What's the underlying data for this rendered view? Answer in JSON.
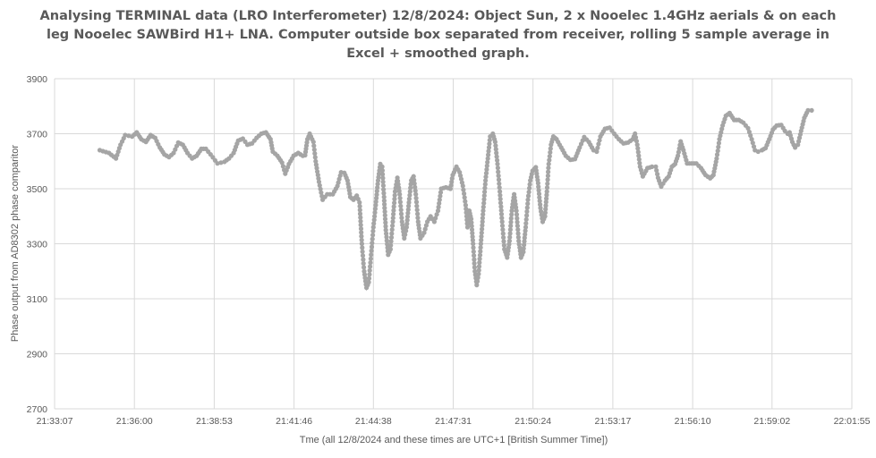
{
  "chart_data": {
    "type": "scatter",
    "title": "Analysing TERMINAL data (LRO Interferometer) 12/8/2024: Object Sun, 2 x Nooelec 1.4GHz aerials & on each leg Nooelec SAWBird H1+ LNA. Computer outside box separated from receiver, rolling 5 sample average in Excel + smoothed graph.",
    "xlabel": "Tme (all 12/8/2024 and these times are UTC+1 [British Summer Time])",
    "ylabel": "Phase output from AD8302 phase comparitor",
    "xlim": [
      "21:33:07",
      "22:01:55"
    ],
    "ylim": [
      2700,
      3900
    ],
    "x_ticks": [
      "21:33:07",
      "21:36:00",
      "21:38:53",
      "21:41:46",
      "21:44:38",
      "21:47:31",
      "21:50:24",
      "21:53:17",
      "21:56:10",
      "21:59:02",
      "22:01:55"
    ],
    "y_ticks": [
      2700,
      2900,
      3100,
      3300,
      3500,
      3700,
      3900
    ],
    "grid": true,
    "legend": "none",
    "series": [
      {
        "color": "#a5a5a5",
        "points": [
          [
            "21:34:45",
            3640
          ],
          [
            "21:35:05",
            3630
          ],
          [
            "21:35:20",
            3610
          ],
          [
            "21:35:30",
            3660
          ],
          [
            "21:35:40",
            3695
          ],
          [
            "21:35:55",
            3690
          ],
          [
            "21:36:05",
            3705
          ],
          [
            "21:36:15",
            3680
          ],
          [
            "21:36:25",
            3670
          ],
          [
            "21:36:35",
            3695
          ],
          [
            "21:36:45",
            3685
          ],
          [
            "21:36:55",
            3650
          ],
          [
            "21:37:05",
            3625
          ],
          [
            "21:37:15",
            3615
          ],
          [
            "21:37:25",
            3630
          ],
          [
            "21:37:35",
            3668
          ],
          [
            "21:37:45",
            3660
          ],
          [
            "21:37:55",
            3630
          ],
          [
            "21:38:05",
            3610
          ],
          [
            "21:38:15",
            3620
          ],
          [
            "21:38:25",
            3645
          ],
          [
            "21:38:35",
            3645
          ],
          [
            "21:38:45",
            3625
          ],
          [
            "21:39:00",
            3592
          ],
          [
            "21:39:15",
            3598
          ],
          [
            "21:39:25",
            3610
          ],
          [
            "21:39:35",
            3630
          ],
          [
            "21:39:45",
            3675
          ],
          [
            "21:39:55",
            3682
          ],
          [
            "21:40:05",
            3660
          ],
          [
            "21:40:15",
            3665
          ],
          [
            "21:40:25",
            3685
          ],
          [
            "21:40:35",
            3700
          ],
          [
            "21:40:45",
            3705
          ],
          [
            "21:40:55",
            3680
          ],
          [
            "21:41:00",
            3635
          ],
          [
            "21:41:10",
            3620
          ],
          [
            "21:41:20",
            3595
          ],
          [
            "21:41:27",
            3555
          ],
          [
            "21:41:35",
            3590
          ],
          [
            "21:41:45",
            3620
          ],
          [
            "21:41:55",
            3630
          ],
          [
            "21:42:05",
            3620
          ],
          [
            "21:42:10",
            3622
          ],
          [
            "21:42:15",
            3680
          ],
          [
            "21:42:20",
            3700
          ],
          [
            "21:42:28",
            3670
          ],
          [
            "21:42:33",
            3600
          ],
          [
            "21:42:40",
            3525
          ],
          [
            "21:42:48",
            3460
          ],
          [
            "21:42:58",
            3480
          ],
          [
            "21:43:10",
            3480
          ],
          [
            "21:43:20",
            3510
          ],
          [
            "21:43:28",
            3560
          ],
          [
            "21:43:35",
            3558
          ],
          [
            "21:43:42",
            3530
          ],
          [
            "21:43:48",
            3470
          ],
          [
            "21:43:55",
            3460
          ],
          [
            "21:44:02",
            3475
          ],
          [
            "21:44:08",
            3450
          ],
          [
            "21:44:13",
            3300
          ],
          [
            "21:44:18",
            3200
          ],
          [
            "21:44:23",
            3140
          ],
          [
            "21:44:28",
            3160
          ],
          [
            "21:44:33",
            3260
          ],
          [
            "21:44:38",
            3360
          ],
          [
            "21:44:43",
            3440
          ],
          [
            "21:44:48",
            3530
          ],
          [
            "21:44:53",
            3590
          ],
          [
            "21:44:57",
            3580
          ],
          [
            "21:45:01",
            3470
          ],
          [
            "21:45:05",
            3350
          ],
          [
            "21:45:10",
            3260
          ],
          [
            "21:45:15",
            3280
          ],
          [
            "21:45:20",
            3380
          ],
          [
            "21:45:25",
            3490
          ],
          [
            "21:45:30",
            3540
          ],
          [
            "21:45:35",
            3480
          ],
          [
            "21:45:40",
            3380
          ],
          [
            "21:45:45",
            3320
          ],
          [
            "21:45:50",
            3360
          ],
          [
            "21:45:55",
            3450
          ],
          [
            "21:46:00",
            3530
          ],
          [
            "21:46:05",
            3545
          ],
          [
            "21:46:10",
            3480
          ],
          [
            "21:46:15",
            3380
          ],
          [
            "21:46:20",
            3320
          ],
          [
            "21:46:28",
            3340
          ],
          [
            "21:46:35",
            3380
          ],
          [
            "21:46:42",
            3400
          ],
          [
            "21:46:50",
            3380
          ],
          [
            "21:46:58",
            3420
          ],
          [
            "21:47:05",
            3500
          ],
          [
            "21:47:15",
            3505
          ],
          [
            "21:47:25",
            3500
          ],
          [
            "21:47:30",
            3550
          ],
          [
            "21:47:38",
            3580
          ],
          [
            "21:47:45",
            3560
          ],
          [
            "21:47:52",
            3510
          ],
          [
            "21:47:58",
            3440
          ],
          [
            "21:48:02",
            3360
          ],
          [
            "21:48:06",
            3420
          ],
          [
            "21:48:10",
            3390
          ],
          [
            "21:48:14",
            3300
          ],
          [
            "21:48:18",
            3200
          ],
          [
            "21:48:22",
            3150
          ],
          [
            "21:48:26",
            3190
          ],
          [
            "21:48:31",
            3300
          ],
          [
            "21:48:36",
            3420
          ],
          [
            "21:48:41",
            3530
          ],
          [
            "21:48:46",
            3610
          ],
          [
            "21:48:51",
            3690
          ],
          [
            "21:48:57",
            3700
          ],
          [
            "21:49:02",
            3670
          ],
          [
            "21:49:07",
            3590
          ],
          [
            "21:49:12",
            3490
          ],
          [
            "21:49:17",
            3380
          ],
          [
            "21:49:22",
            3280
          ],
          [
            "21:49:28",
            3250
          ],
          [
            "21:49:33",
            3310
          ],
          [
            "21:49:38",
            3420
          ],
          [
            "21:49:43",
            3480
          ],
          [
            "21:49:48",
            3420
          ],
          [
            "21:49:53",
            3310
          ],
          [
            "21:49:58",
            3250
          ],
          [
            "21:50:03",
            3270
          ],
          [
            "21:50:08",
            3360
          ],
          [
            "21:50:13",
            3460
          ],
          [
            "21:50:18",
            3530
          ],
          [
            "21:50:23",
            3565
          ],
          [
            "21:50:30",
            3578
          ],
          [
            "21:50:35",
            3520
          ],
          [
            "21:50:40",
            3430
          ],
          [
            "21:50:45",
            3380
          ],
          [
            "21:50:50",
            3400
          ],
          [
            "21:50:54",
            3490
          ],
          [
            "21:50:58",
            3590
          ],
          [
            "21:51:03",
            3660
          ],
          [
            "21:51:08",
            3690
          ],
          [
            "21:51:15",
            3680
          ],
          [
            "21:51:25",
            3650
          ],
          [
            "21:51:35",
            3620
          ],
          [
            "21:51:45",
            3605
          ],
          [
            "21:51:55",
            3608
          ],
          [
            "21:52:05",
            3650
          ],
          [
            "21:52:15",
            3688
          ],
          [
            "21:52:25",
            3670
          ],
          [
            "21:52:35",
            3640
          ],
          [
            "21:52:42",
            3635
          ],
          [
            "21:52:50",
            3690
          ],
          [
            "21:53:00",
            3718
          ],
          [
            "21:53:10",
            3722
          ],
          [
            "21:53:20",
            3700
          ],
          [
            "21:53:30",
            3680
          ],
          [
            "21:53:40",
            3665
          ],
          [
            "21:53:50",
            3668
          ],
          [
            "21:54:00",
            3680
          ],
          [
            "21:54:05",
            3700
          ],
          [
            "21:54:10",
            3660
          ],
          [
            "21:54:16",
            3580
          ],
          [
            "21:54:22",
            3545
          ],
          [
            "21:54:32",
            3575
          ],
          [
            "21:54:42",
            3580
          ],
          [
            "21:54:50",
            3580
          ],
          [
            "21:54:55",
            3540
          ],
          [
            "21:55:02",
            3508
          ],
          [
            "21:55:10",
            3530
          ],
          [
            "21:55:18",
            3545
          ],
          [
            "21:55:25",
            3580
          ],
          [
            "21:55:32",
            3590
          ],
          [
            "21:55:38",
            3620
          ],
          [
            "21:55:44",
            3672
          ],
          [
            "21:55:50",
            3640
          ],
          [
            "21:55:58",
            3592
          ],
          [
            "21:56:08",
            3592
          ],
          [
            "21:56:18",
            3592
          ],
          [
            "21:56:28",
            3575
          ],
          [
            "21:56:38",
            3550
          ],
          [
            "21:56:48",
            3538
          ],
          [
            "21:56:55",
            3550
          ],
          [
            "21:57:02",
            3610
          ],
          [
            "21:57:08",
            3680
          ],
          [
            "21:57:15",
            3730
          ],
          [
            "21:57:22",
            3765
          ],
          [
            "21:57:30",
            3775
          ],
          [
            "21:57:40",
            3750
          ],
          [
            "21:57:50",
            3750
          ],
          [
            "21:58:00",
            3740
          ],
          [
            "21:58:10",
            3720
          ],
          [
            "21:58:18",
            3680
          ],
          [
            "21:58:25",
            3640
          ],
          [
            "21:58:32",
            3635
          ],
          [
            "21:58:40",
            3640
          ],
          [
            "21:58:48",
            3648
          ],
          [
            "21:58:56",
            3680
          ],
          [
            "21:59:04",
            3715
          ],
          [
            "21:59:12",
            3730
          ],
          [
            "21:59:22",
            3732
          ],
          [
            "21:59:30",
            3710
          ],
          [
            "21:59:36",
            3700
          ],
          [
            "21:59:40",
            3705
          ],
          [
            "21:59:46",
            3670
          ],
          [
            "21:59:52",
            3650
          ],
          [
            "21:59:58",
            3660
          ],
          [
            "22:00:05",
            3710
          ],
          [
            "22:00:12",
            3758
          ],
          [
            "22:00:20",
            3785
          ],
          [
            "22:00:28",
            3785
          ]
        ]
      }
    ]
  }
}
